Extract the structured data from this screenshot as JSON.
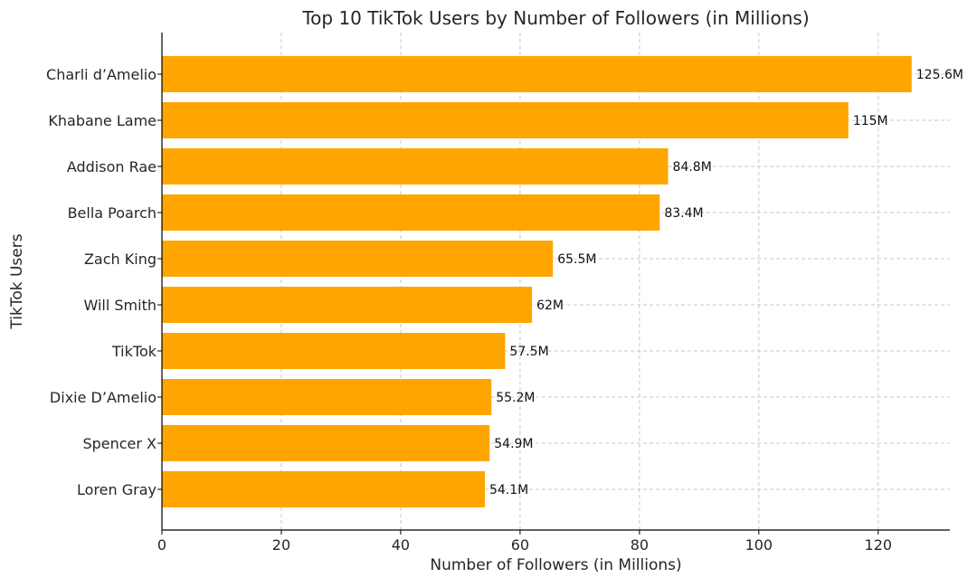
{
  "chart_data": {
    "type": "bar",
    "orientation": "horizontal",
    "title": "Top 10 TikTok Users by Number of Followers (in Millions)",
    "xlabel": "Number of Followers (in Millions)",
    "ylabel": "TikTok Users",
    "categories": [
      "Charli d’Amelio",
      "Khabane Lame",
      "Addison Rae",
      "Bella Poarch",
      "Zach King",
      "Will Smith",
      "TikTok",
      "Dixie D’Amelio",
      "Spencer X",
      "Loren Gray"
    ],
    "values": [
      125.6,
      115,
      84.8,
      83.4,
      65.5,
      62,
      57.5,
      55.2,
      54.9,
      54.1
    ],
    "data_labels": [
      "125.6M",
      "115M",
      "84.8M",
      "83.4M",
      "65.5M",
      "62M",
      "57.5M",
      "55.2M",
      "54.9M",
      "54.1M"
    ],
    "xlim": [
      0,
      132
    ],
    "xticks": [
      0,
      20,
      40,
      60,
      80,
      100,
      120
    ],
    "grid": true,
    "bar_color": "#FFA500"
  }
}
